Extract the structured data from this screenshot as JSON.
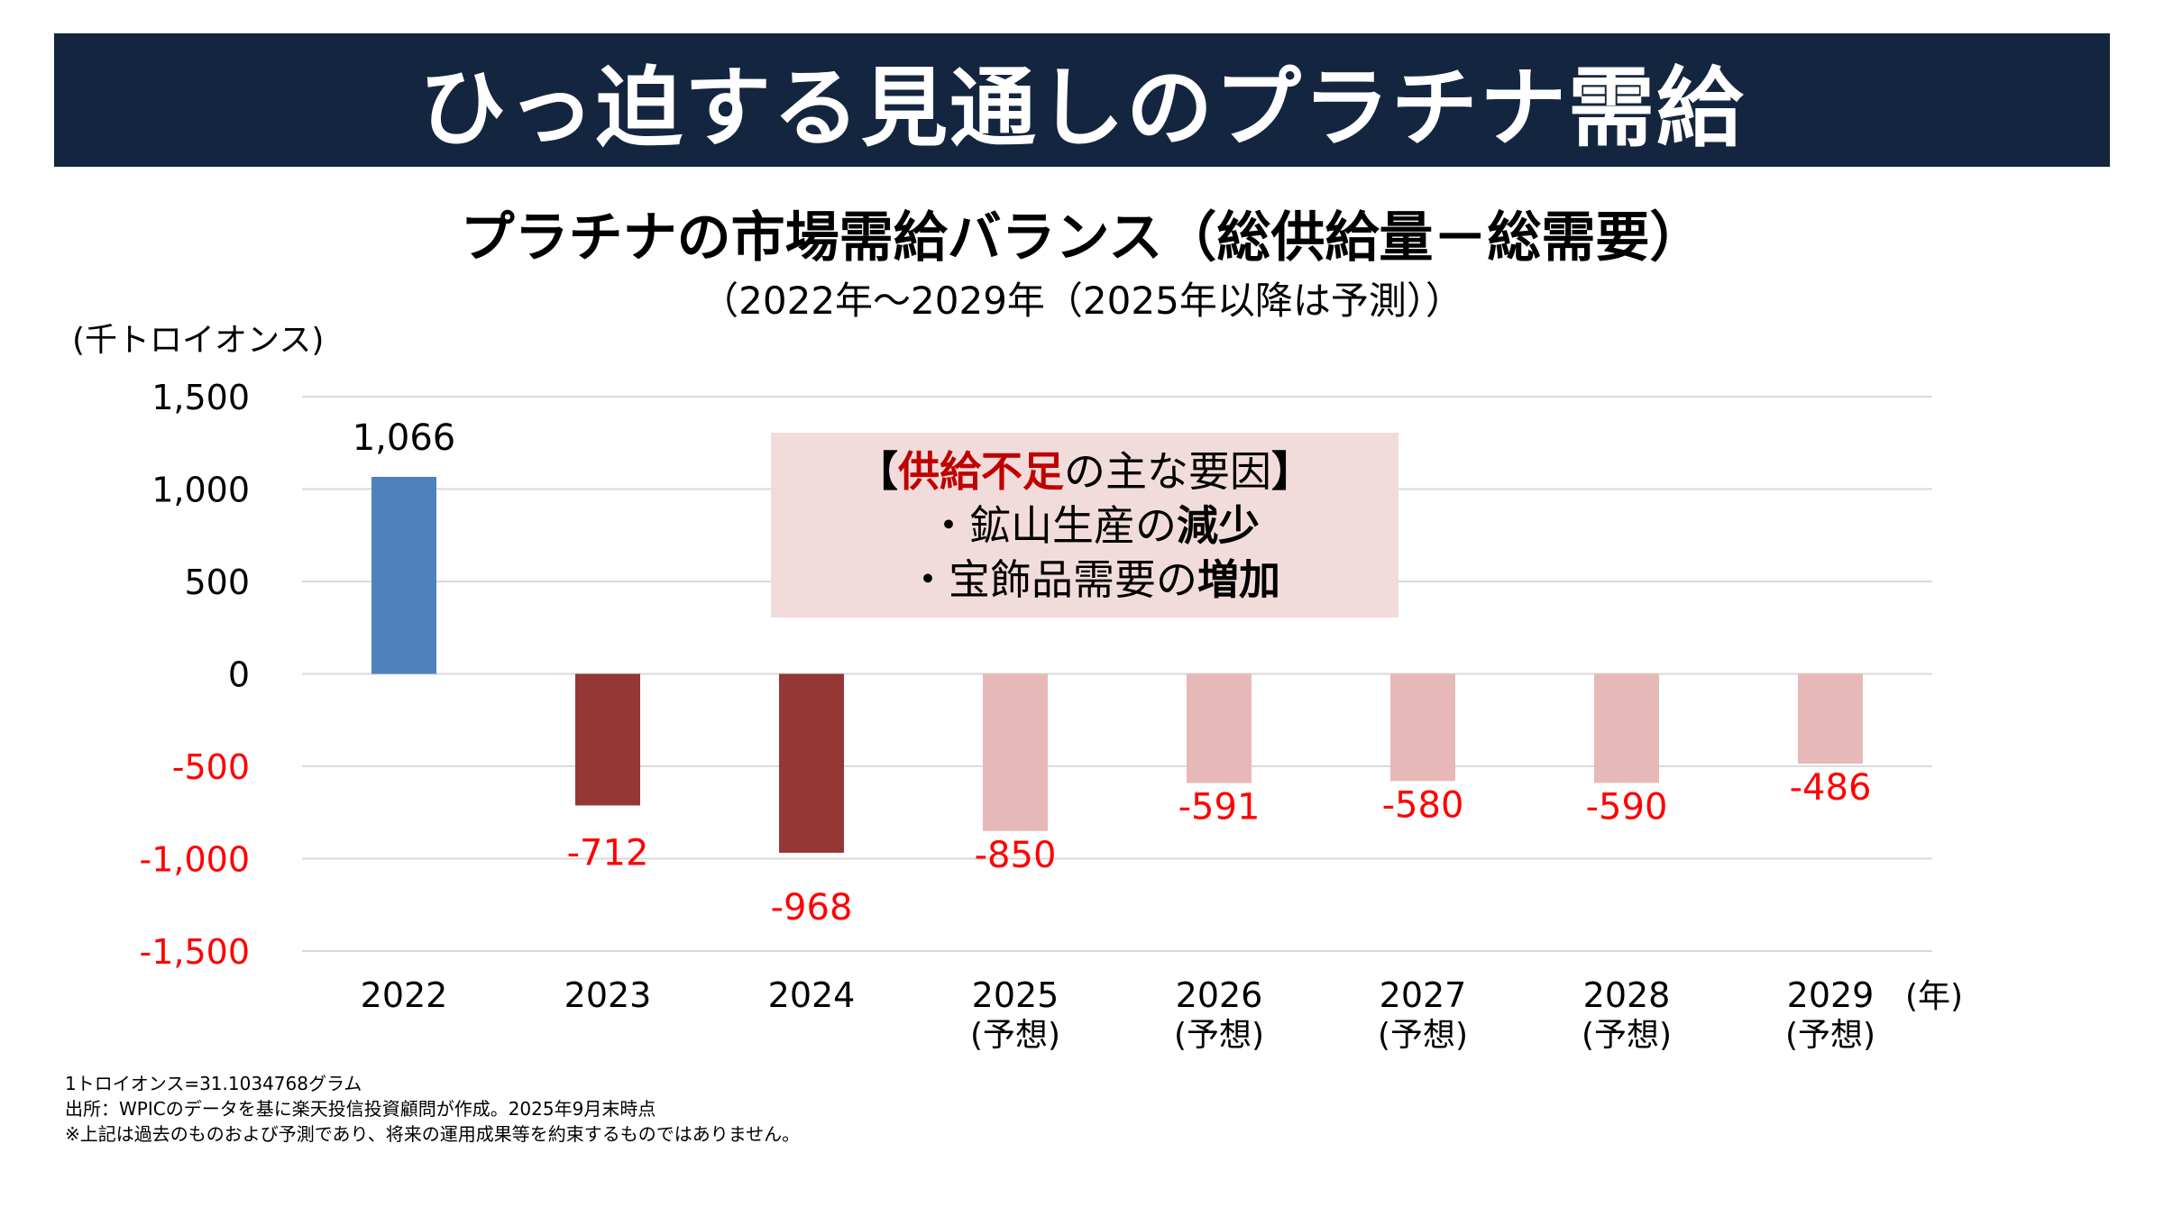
{
  "banner": {
    "title": "ひっ迫する見通しのプラチナ需給"
  },
  "callout": {
    "bracket_open": "【",
    "highlight": "供給不足",
    "head_rest": "の主な要因",
    "bracket_close": "】",
    "items": [
      {
        "bullet": "・",
        "text": "鉱山生産の",
        "strong": "減少"
      },
      {
        "bullet": "・",
        "text": "宝飾品需要の",
        "strong": "増加"
      }
    ]
  },
  "footnotes": [
    "1トロイオンス=31.1034768グラム",
    "出所：WPICのデータを基に楽天投信投資顧問が作成。2025年9月末時点",
    "※上記は過去のものおよび予測であり、将来の運用成果等を約束するものではありません。"
  ],
  "colors": {
    "banner_bg": "#14263f",
    "positive_bar": "#4f81bd",
    "actual_negative_bar": "#953735",
    "forecast_negative_bar": "#e6b9b8",
    "negative_text": "#ff0000",
    "callout_bg": "#f2dcdb",
    "callout_highlight": "#c00000",
    "gridline": "#d9d9d9"
  },
  "chart_data": {
    "type": "bar",
    "title": "プラチナの市場需給バランス（総供給量－総需要）",
    "subtitle": "（2022年～2029年（2025年以降は予測））",
    "ylabel": "(千トロイオンス)",
    "xlabel": "(年)",
    "ylim": [
      -1500,
      1500
    ],
    "yticks": [
      1500,
      1000,
      500,
      0,
      -500,
      -1000,
      -1500
    ],
    "ytick_labels": [
      "1,500",
      "1,000",
      "500",
      "0",
      "-500",
      "-1,000",
      "-1,500"
    ],
    "grid": true,
    "legend": "none",
    "categories": [
      "2022",
      "2023",
      "2024",
      "2025",
      "2026",
      "2027",
      "2028",
      "2029"
    ],
    "category_sublabels": [
      "",
      "",
      "",
      "(予想)",
      "(予想)",
      "(予想)",
      "(予想)",
      "(予想)"
    ],
    "values": [
      1066,
      -712,
      -968,
      -850,
      -591,
      -580,
      -590,
      -486
    ],
    "value_labels": [
      "1,066",
      "-712",
      "-968",
      "-850",
      "-591",
      "-580",
      "-590",
      "-486"
    ],
    "forecast": [
      false,
      false,
      false,
      true,
      true,
      true,
      true,
      true
    ]
  }
}
